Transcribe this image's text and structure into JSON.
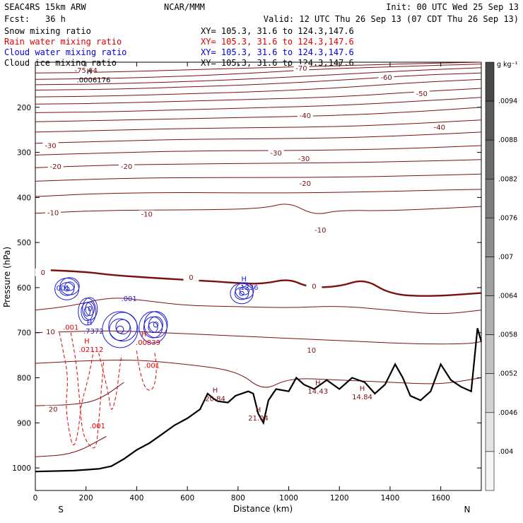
{
  "header": {
    "model": "SEAC4RS 15km ARW",
    "center": "NCAR/MMM",
    "init": "Init: 00 UTC Wed 25 Sep 13",
    "fcst_label": "Fcst:",
    "fcst_value": "36 h",
    "valid": "Valid: 12 UTC Thu 26 Sep 13 (07 CDT Thu 26 Sep 13)"
  },
  "fields": [
    {
      "name": "Snow mixing ratio",
      "xy": "XY= 105.3, 31.6 to 124.3,147.6",
      "color": "#000000"
    },
    {
      "name": "Rain water mixing ratio",
      "xy": "XY= 105.3, 31.6 to 124.3,147.6",
      "color": "#e00000"
    },
    {
      "name": "Cloud water mixing ratio",
      "xy": "XY= 105.3, 31.6 to 124.3,147.6",
      "color": "#0000e0"
    },
    {
      "name": "Cloud ice mixing ratio",
      "xy": "XY= 105.3, 31.6 to 124.3,147.6",
      "color": "#000000"
    }
  ],
  "colors": {
    "temperature": "#7a1010",
    "freezing": "#7a1010",
    "rain": "#e00000",
    "cloud": "#2020d0",
    "terrain": "#000000"
  },
  "chart_data": {
    "type": "cross-section",
    "xlabel": "Distance (km)",
    "ylabel": "Pressure (hPa)",
    "xlim": [
      0,
      1760
    ],
    "ylim": [
      1050,
      100
    ],
    "x_ticks": [
      0,
      200,
      400,
      600,
      800,
      1000,
      1200,
      1400,
      1600
    ],
    "y_ticks": [
      200,
      300,
      400,
      500,
      600,
      700,
      800,
      900,
      1000
    ],
    "endpoints": {
      "left": "S",
      "right": "N"
    },
    "colorbar": {
      "units": "g kg⁻¹",
      "tick_labels": [
        ".004",
        ".0046",
        ".0052",
        ".0058",
        ".0064",
        ".007",
        ".0076",
        ".0082",
        ".0088",
        ".0094"
      ],
      "levels": 11
    },
    "temperature_contours": [
      {
        "value": -75.64,
        "label": "-75.64",
        "points": [
          [
            0,
            124
          ],
          [
            300,
            122
          ],
          [
            600,
            117
          ],
          [
            900,
            112
          ],
          [
            1200,
            108
          ],
          [
            1500,
            103
          ],
          [
            1760,
            100
          ]
        ]
      },
      {
        "value": -70,
        "points": [
          [
            0,
            138
          ],
          [
            300,
            136
          ],
          [
            600,
            131
          ],
          [
            900,
            123
          ],
          [
            1100,
            116
          ],
          [
            1400,
            110
          ],
          [
            1760,
            104
          ]
        ]
      },
      {
        "value": -65,
        "points": [
          [
            0,
            150
          ],
          [
            300,
            148
          ],
          [
            600,
            143
          ],
          [
            900,
            136
          ],
          [
            1200,
            127
          ],
          [
            1500,
            118
          ],
          [
            1760,
            112
          ]
        ]
      },
      {
        "value": -60,
        "points": [
          [
            0,
            162
          ],
          [
            300,
            160
          ],
          [
            600,
            155
          ],
          [
            900,
            149
          ],
          [
            1200,
            140
          ],
          [
            1500,
            129
          ],
          [
            1760,
            124
          ]
        ]
      },
      {
        "value": -55,
        "points": [
          [
            0,
            177
          ],
          [
            300,
            175
          ],
          [
            600,
            170
          ],
          [
            900,
            165
          ],
          [
            1200,
            157
          ],
          [
            1500,
            145
          ],
          [
            1760,
            138
          ]
        ]
      },
      {
        "value": -50,
        "points": [
          [
            0,
            193
          ],
          [
            300,
            191
          ],
          [
            600,
            186
          ],
          [
            900,
            182
          ],
          [
            1200,
            177
          ],
          [
            1500,
            166
          ],
          [
            1760,
            158
          ]
        ]
      },
      {
        "value": -45,
        "points": [
          [
            0,
            212
          ],
          [
            300,
            210
          ],
          [
            600,
            205
          ],
          [
            900,
            201
          ],
          [
            1200,
            196
          ],
          [
            1500,
            187
          ],
          [
            1760,
            178
          ]
        ]
      },
      {
        "value": -40,
        "points": [
          [
            0,
            232
          ],
          [
            300,
            229
          ],
          [
            600,
            225
          ],
          [
            900,
            222
          ],
          [
            1200,
            218
          ],
          [
            1500,
            210
          ],
          [
            1760,
            200
          ]
        ]
      },
      {
        "value": -35,
        "points": [
          [
            0,
            255
          ],
          [
            300,
            251
          ],
          [
            600,
            247
          ],
          [
            900,
            245
          ],
          [
            1200,
            243
          ],
          [
            1500,
            236
          ],
          [
            1760,
            228
          ]
        ]
      },
      {
        "value": -30,
        "points": [
          [
            0,
            280
          ],
          [
            300,
            275
          ],
          [
            600,
            271
          ],
          [
            900,
            270
          ],
          [
            1200,
            268
          ],
          [
            1500,
            262
          ],
          [
            1760,
            255
          ]
        ]
      },
      {
        "value": -25,
        "points": [
          [
            0,
            306
          ],
          [
            300,
            301
          ],
          [
            600,
            297
          ],
          [
            900,
            296
          ],
          [
            1200,
            295
          ],
          [
            1500,
            291
          ],
          [
            1760,
            285
          ]
        ]
      },
      {
        "value": -20,
        "points": [
          [
            0,
            334
          ],
          [
            300,
            328
          ],
          [
            600,
            326
          ],
          [
            900,
            324
          ],
          [
            1200,
            323
          ],
          [
            1500,
            320
          ],
          [
            1760,
            316
          ]
        ]
      },
      {
        "value": -15,
        "points": [
          [
            0,
            364
          ],
          [
            300,
            358
          ],
          [
            600,
            356
          ],
          [
            900,
            356
          ],
          [
            1200,
            355
          ],
          [
            1500,
            352
          ],
          [
            1760,
            348
          ]
        ]
      },
      {
        "value": -10,
        "points": [
          [
            0,
            398
          ],
          [
            300,
            390
          ],
          [
            600,
            389
          ],
          [
            900,
            390
          ],
          [
            1200,
            389
          ],
          [
            1500,
            385
          ],
          [
            1760,
            382
          ]
        ]
      },
      {
        "value": -5,
        "points": [
          [
            0,
            435
          ],
          [
            300,
            428
          ],
          [
            600,
            428
          ],
          [
            900,
            425
          ],
          [
            1000,
            410
          ],
          [
            1100,
            440
          ],
          [
            1200,
            428
          ],
          [
            1400,
            430
          ],
          [
            1760,
            420
          ]
        ]
      },
      {
        "value": 0,
        "label": "0",
        "points": [
          [
            0,
            560
          ],
          [
            200,
            565
          ],
          [
            300,
            572
          ],
          [
            450,
            578
          ],
          [
            600,
            583
          ],
          [
            700,
            586
          ],
          [
            800,
            590
          ],
          [
            900,
            592
          ],
          [
            1000,
            580
          ],
          [
            1080,
            600
          ],
          [
            1200,
            598
          ],
          [
            1300,
            580
          ],
          [
            1400,
            615
          ],
          [
            1550,
            620
          ],
          [
            1760,
            612
          ]
        ]
      },
      {
        "value": 5,
        "points": [
          [
            0,
            650
          ],
          [
            150,
            640
          ],
          [
            300,
            620
          ],
          [
            450,
            630
          ],
          [
            600,
            640
          ],
          [
            800,
            642
          ],
          [
            1000,
            645
          ],
          [
            1200,
            640
          ],
          [
            1400,
            650
          ],
          [
            1600,
            660
          ],
          [
            1760,
            650
          ]
        ]
      },
      {
        "value": 10,
        "points": [
          [
            0,
            700
          ],
          [
            300,
            695
          ],
          [
            500,
            700
          ],
          [
            700,
            705
          ],
          [
            900,
            710
          ],
          [
            1100,
            715
          ],
          [
            1300,
            720
          ],
          [
            1500,
            725
          ],
          [
            1700,
            725
          ],
          [
            1760,
            720
          ]
        ]
      },
      {
        "value": 15,
        "points": [
          [
            0,
            768
          ],
          [
            200,
            762
          ],
          [
            400,
            760
          ],
          [
            600,
            770
          ],
          [
            800,
            785
          ],
          [
            900,
            830
          ],
          [
            1000,
            800
          ],
          [
            1200,
            805
          ],
          [
            1400,
            810
          ],
          [
            1600,
            815
          ],
          [
            1760,
            800
          ]
        ]
      },
      {
        "value": 20,
        "points": [
          [
            0,
            862
          ],
          [
            150,
            860
          ],
          [
            250,
            850
          ],
          [
            350,
            810
          ]
        ]
      },
      {
        "value": 25,
        "points": [
          [
            0,
            975
          ],
          [
            150,
            970
          ],
          [
            280,
            930
          ]
        ]
      }
    ],
    "temperature_labels": [
      {
        "text": "-75.64",
        "x": 200,
        "p": 122
      },
      {
        "text": "-70",
        "x": 1050,
        "p": 117
      },
      {
        "text": "-60",
        "x": 1385,
        "p": 138
      },
      {
        "text": "-50",
        "x": 1525,
        "p": 174
      },
      {
        "text": "-40",
        "x": 1065,
        "p": 222
      },
      {
        "text": "-40",
        "x": 1595,
        "p": 248
      },
      {
        "text": "-30",
        "x": 60,
        "p": 289
      },
      {
        "text": "-30",
        "x": 950,
        "p": 305
      },
      {
        "text": "-30",
        "x": 1060,
        "p": 318
      },
      {
        "text": "-20",
        "x": 80,
        "p": 335
      },
      {
        "text": "-20",
        "x": 360,
        "p": 335
      },
      {
        "text": "-20",
        "x": 1065,
        "p": 373
      },
      {
        "text": "-10",
        "x": 70,
        "p": 438
      },
      {
        "text": "-10",
        "x": 440,
        "p": 441
      },
      {
        "text": "-10",
        "x": 1125,
        "p": 476
      },
      {
        "text": "0",
        "x": 30,
        "p": 570
      },
      {
        "text": "0",
        "x": 615,
        "p": 581
      },
      {
        "text": "0",
        "x": 1100,
        "p": 601
      },
      {
        "text": "10",
        "x": 60,
        "p": 702
      },
      {
        "text": "10",
        "x": 1090,
        "p": 743
      },
      {
        "text": "20",
        "x": 70,
        "p": 874
      }
    ],
    "terrain": [
      [
        0,
        1008
      ],
      [
        150,
        1006
      ],
      [
        250,
        1002
      ],
      [
        300,
        996
      ],
      [
        350,
        980
      ],
      [
        400,
        960
      ],
      [
        450,
        945
      ],
      [
        500,
        925
      ],
      [
        550,
        905
      ],
      [
        600,
        890
      ],
      [
        650,
        870
      ],
      [
        680,
        835
      ],
      [
        700,
        845
      ],
      [
        720,
        852
      ],
      [
        760,
        855
      ],
      [
        790,
        840
      ],
      [
        840,
        830
      ],
      [
        860,
        835
      ],
      [
        880,
        880
      ],
      [
        900,
        900
      ],
      [
        920,
        850
      ],
      [
        950,
        825
      ],
      [
        1000,
        830
      ],
      [
        1030,
        800
      ],
      [
        1060,
        815
      ],
      [
        1100,
        825
      ],
      [
        1150,
        805
      ],
      [
        1200,
        825
      ],
      [
        1250,
        800
      ],
      [
        1300,
        810
      ],
      [
        1340,
        835
      ],
      [
        1380,
        815
      ],
      [
        1420,
        770
      ],
      [
        1450,
        800
      ],
      [
        1480,
        840
      ],
      [
        1520,
        850
      ],
      [
        1560,
        830
      ],
      [
        1600,
        770
      ],
      [
        1640,
        805
      ],
      [
        1680,
        820
      ],
      [
        1720,
        830
      ],
      [
        1745,
        690
      ],
      [
        1760,
        720
      ]
    ],
    "terrain_labels": [
      {
        "marker": "H",
        "value": "20.84",
        "x": 710,
        "p": 852
      },
      {
        "marker": "H",
        "value": "21.04",
        "x": 880,
        "p": 895
      },
      {
        "marker": "H",
        "value": "14.43",
        "x": 1115,
        "p": 835
      },
      {
        "marker": "H",
        "value": "14.84",
        "x": 1290,
        "p": 848
      }
    ],
    "max_labels": [
      {
        "marker": "H",
        "value": ".0006176",
        "x": 230,
        "p": 145,
        "field": "ice"
      },
      {
        "marker": "H",
        "value": ".7372",
        "x": 230,
        "p": 702,
        "field": "cloud"
      },
      {
        "marker": "H",
        "value": ".02112",
        "x": 220,
        "p": 743,
        "field": "rain"
      },
      {
        "marker": "H",
        "value": ".00839",
        "x": 445,
        "p": 727,
        "field": "rain"
      },
      {
        "marker": "H",
        "value": ".1236",
        "x": 840,
        "p": 605,
        "field": "cloud"
      }
    ],
    "cloud_labels": [
      {
        "text": ".001",
        "x": 105,
        "p": 606
      },
      {
        "text": ".001",
        "x": 370,
        "p": 630
      }
    ],
    "rain_labels": [
      {
        "text": ".001",
        "x": 140,
        "p": 693
      },
      {
        "text": ".001",
        "x": 460,
        "p": 778
      },
      {
        "text": ".001",
        "x": 245,
        "p": 912
      }
    ]
  },
  "cloud_blobs": [
    {
      "cx": 130,
      "cp": 600,
      "rx": 95,
      "rp": 48,
      "n": 5
    },
    {
      "cx": 210,
      "cp": 650,
      "rx": 70,
      "rp": 60,
      "n": 6
    },
    {
      "cx": 340,
      "cp": 690,
      "rx": 140,
      "rp": 80,
      "n": 5
    },
    {
      "cx": 470,
      "cp": 685,
      "rx": 110,
      "rp": 70,
      "n": 6
    },
    {
      "cx": 820,
      "cp": 610,
      "rx": 90,
      "rp": 45,
      "n": 5
    }
  ],
  "rain_paths": [
    [
      [
        95,
        700
      ],
      [
        110,
        740
      ],
      [
        130,
        800
      ],
      [
        120,
        860
      ],
      [
        130,
        910
      ],
      [
        150,
        960
      ],
      [
        170,
        920
      ],
      [
        180,
        860
      ],
      [
        210,
        800
      ],
      [
        230,
        740
      ]
    ],
    [
      [
        250,
        745
      ],
      [
        270,
        790
      ],
      [
        290,
        840
      ],
      [
        300,
        880
      ],
      [
        320,
        840
      ],
      [
        330,
        790
      ],
      [
        340,
        750
      ]
    ],
    [
      [
        400,
        740
      ],
      [
        410,
        780
      ],
      [
        430,
        820
      ],
      [
        450,
        830
      ],
      [
        470,
        820
      ],
      [
        480,
        780
      ],
      [
        470,
        740
      ]
    ],
    [
      [
        140,
        700
      ],
      [
        160,
        760
      ],
      [
        175,
        850
      ],
      [
        185,
        920
      ],
      [
        210,
        950
      ],
      [
        240,
        960
      ],
      [
        250,
        900
      ],
      [
        260,
        830
      ],
      [
        270,
        760
      ]
    ]
  ]
}
